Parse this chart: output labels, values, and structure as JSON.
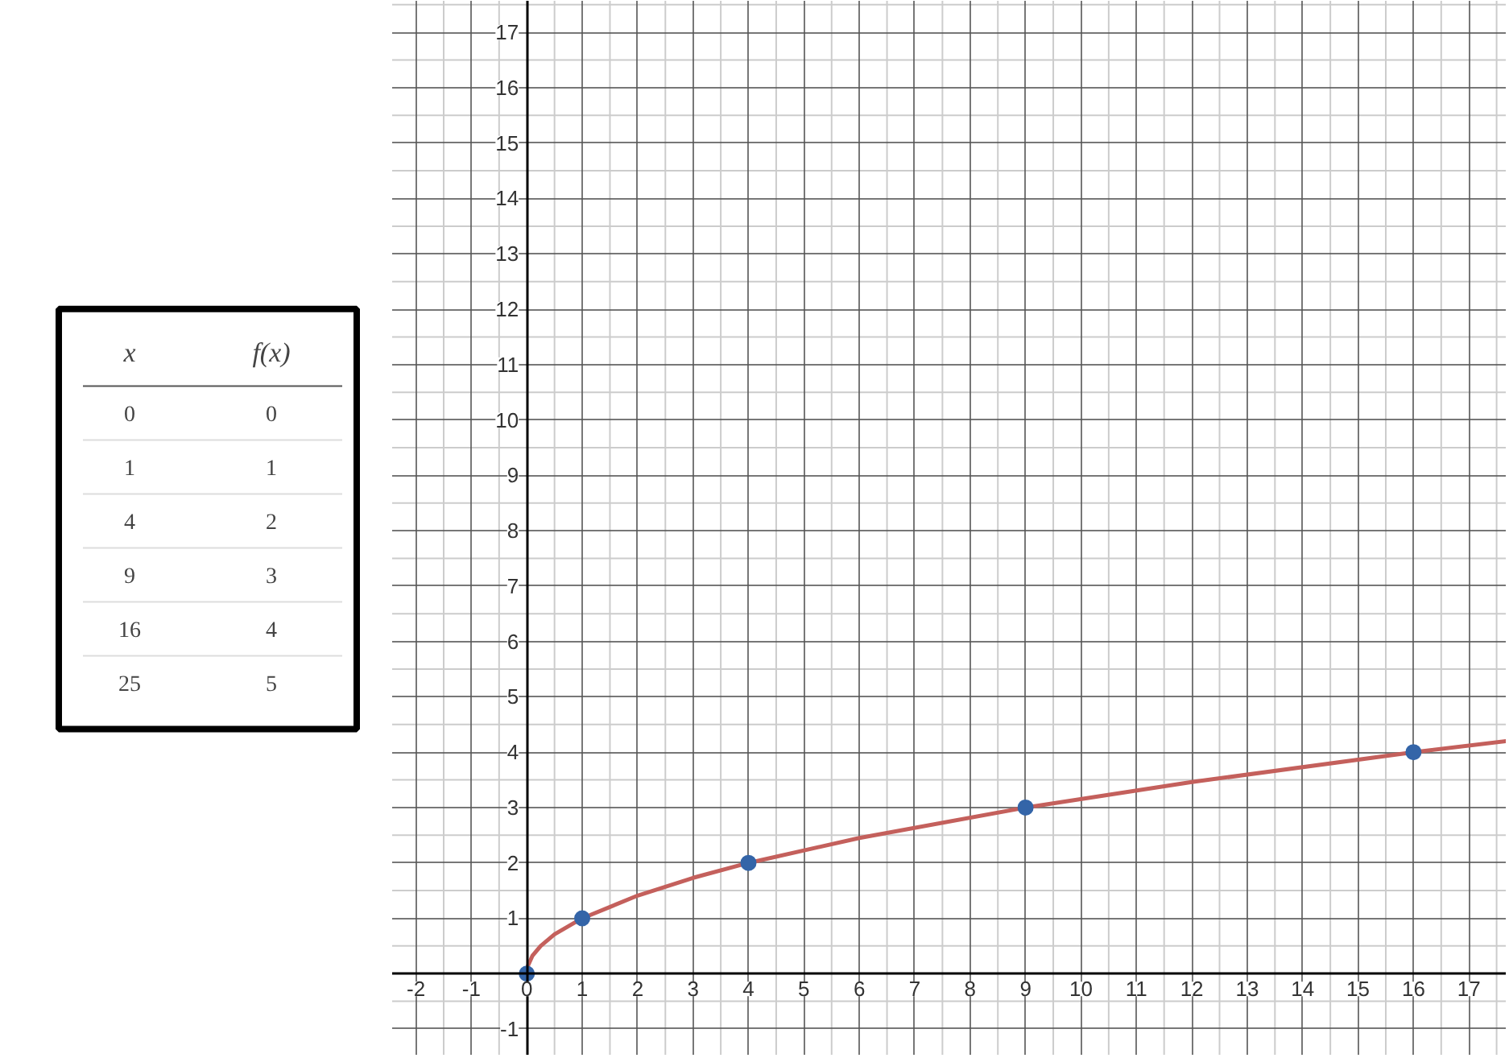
{
  "chart_data": [
    {
      "type": "heatmap",
      "categories": [
        "x",
        "f(x)"
      ],
      "y_categories": [
        null,
        null,
        null,
        null,
        null,
        null
      ],
      "cells": [
        [
          0,
          0
        ],
        [
          1,
          1
        ],
        [
          4,
          2
        ],
        [
          9,
          3
        ],
        [
          16,
          4
        ],
        [
          25,
          5
        ]
      ],
      "data_labels": true
    },
    {
      "type": "line",
      "xlim": [
        -2.43,
        17.68
      ],
      "ylim": [
        -1.48,
        17.57
      ],
      "xticks": [
        -2,
        -1,
        0,
        1,
        2,
        3,
        4,
        5,
        6,
        7,
        8,
        9,
        10,
        11,
        12,
        13,
        14,
        15,
        16,
        17
      ],
      "yticks": [
        -1,
        {
          "value": 0,
          "label": null
        },
        1,
        2,
        3,
        4,
        5,
        6,
        7,
        8,
        9,
        10,
        11,
        12,
        13,
        14,
        15,
        16,
        17
      ],
      "grid": true,
      "series": [
        {
          "type": "line",
          "color": "#c4605c",
          "line_style": "solid",
          "x": [
            0,
            0.02,
            0.1,
            0.25,
            0.5,
            1,
            2,
            3,
            4,
            6,
            9,
            12,
            16,
            17.68
          ],
          "values": [
            0,
            0.14,
            0.32,
            0.5,
            0.71,
            1,
            1.41,
            1.73,
            2,
            2.45,
            3,
            3.46,
            4,
            4.2
          ]
        },
        {
          "type": "scatter",
          "color": "#3465a8",
          "marker": "circle",
          "x": [
            0,
            1,
            4,
            9,
            16
          ],
          "values": [
            0,
            1,
            2,
            3,
            4
          ]
        }
      ]
    }
  ]
}
